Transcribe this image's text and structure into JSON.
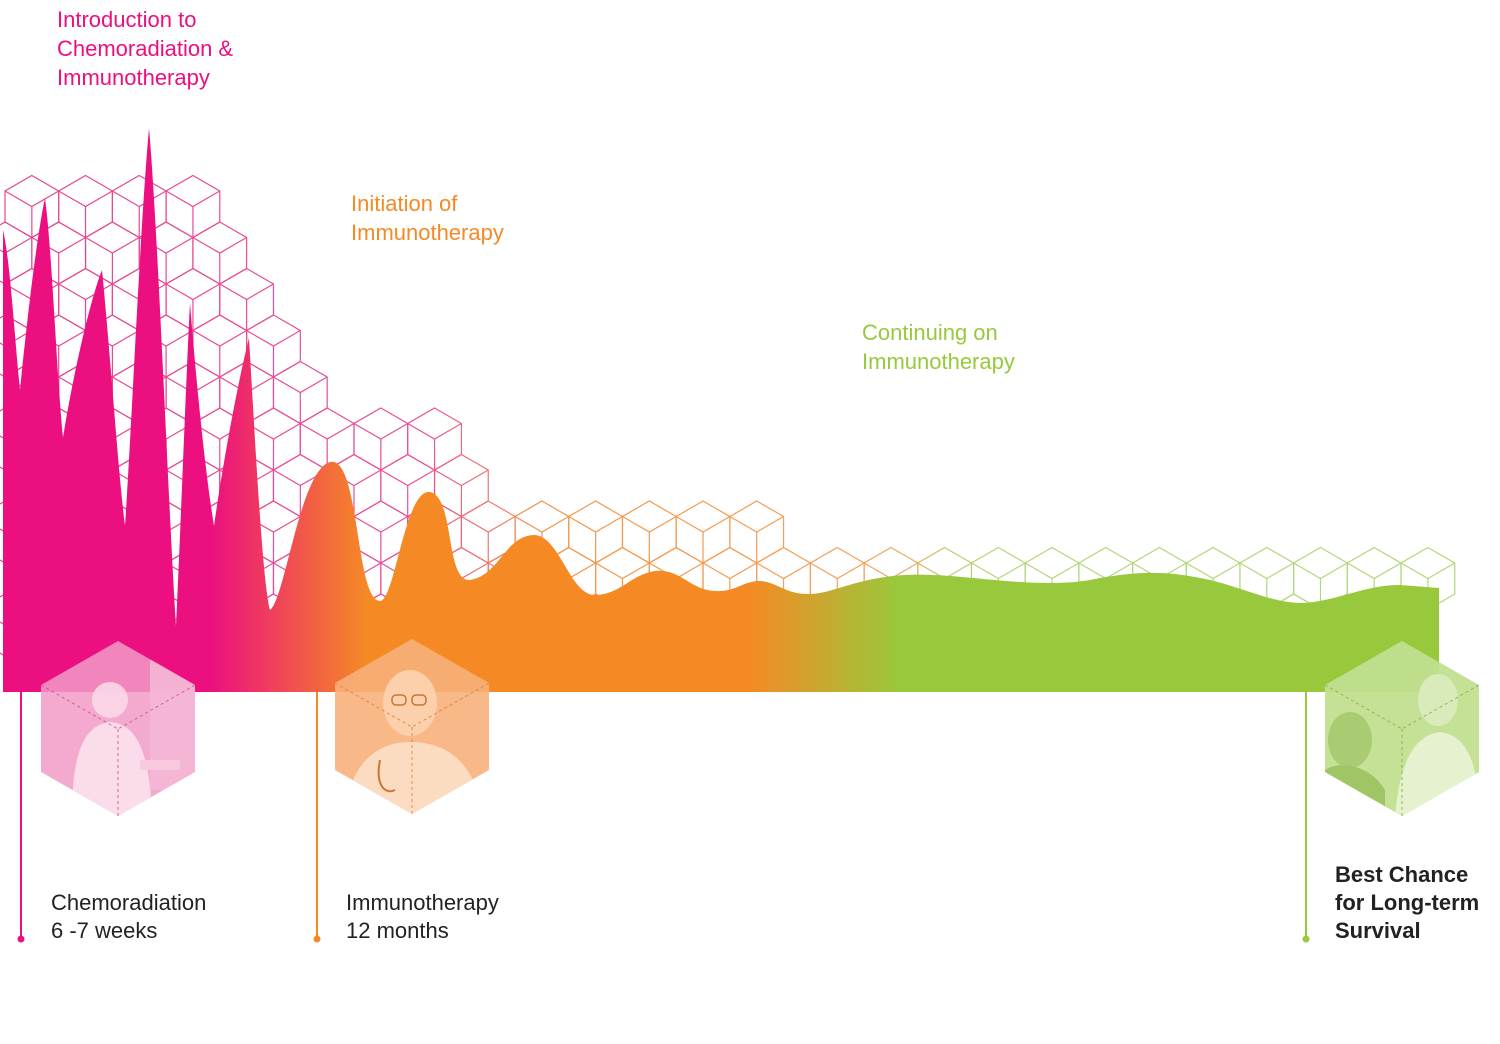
{
  "colors": {
    "pink": "#ec0f80",
    "orange": "#f58a24",
    "green": "#98c93c"
  },
  "phases": [
    {
      "lines": [
        "Introduction to",
        "Chemoradiation &",
        "Immunotherapy"
      ],
      "color": "#ec0f80"
    },
    {
      "lines": [
        "Initiation of",
        "Immunotherapy"
      ],
      "color": "#f58a24"
    },
    {
      "lines": [
        "Continuing on",
        "Immunotherapy"
      ],
      "color": "#98c93c"
    }
  ],
  "milestones": [
    {
      "lines": [
        "Chemoradiation",
        "6 -7 weeks"
      ],
      "color": "#ec0f80",
      "photo": "patient-receiving-treatment-photo"
    },
    {
      "lines": [
        "Immunotherapy",
        "12 months"
      ],
      "color": "#f58a24",
      "photo": "doctor-with-stethoscope-photo"
    },
    {
      "lines": [
        "Best Chance",
        "for Long-term",
        "Survival"
      ],
      "color": "#98c93c",
      "photo": "doctor-with-patient-photo"
    }
  ]
}
